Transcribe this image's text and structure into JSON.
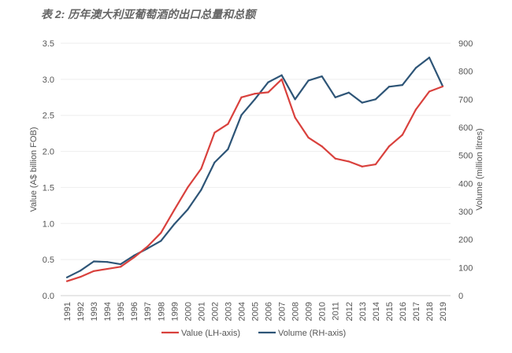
{
  "title": "表 2: 历年澳大利亚葡萄酒的出口总量和总额",
  "chart_data": {
    "type": "line",
    "title": "表 2: 历年澳大利亚葡萄酒的出口总量和总额",
    "x": [
      1991,
      1992,
      1993,
      1994,
      1995,
      1996,
      1997,
      1998,
      1999,
      2000,
      2001,
      2002,
      2003,
      2004,
      2005,
      2006,
      2007,
      2008,
      2009,
      2010,
      2011,
      2012,
      2013,
      2014,
      2015,
      2016,
      2017,
      2018,
      2019
    ],
    "ylabel": "Value (A$ billion FOB)",
    "ylabel_right": "Volume (million litres)",
    "ylim": [
      0,
      3.5
    ],
    "ylim_right": [
      0,
      900
    ],
    "yticks": [
      "0.0",
      "0.5",
      "1.0",
      "1.5",
      "2.0",
      "2.5",
      "3.0",
      "3.5"
    ],
    "yticks_right": [
      "0",
      "100",
      "200",
      "300",
      "400",
      "500",
      "600",
      "700",
      "800",
      "900"
    ],
    "grid": true,
    "legend_position": "bottom",
    "series": [
      {
        "name": "Value (LH-axis)",
        "axis": "left",
        "color": "#d9413d",
        "values": [
          0.2,
          0.26,
          0.34,
          0.37,
          0.4,
          0.53,
          0.68,
          0.87,
          1.19,
          1.5,
          1.76,
          2.26,
          2.38,
          2.75,
          2.8,
          2.82,
          3.0,
          2.47,
          2.19,
          2.07,
          1.9,
          1.86,
          1.79,
          1.82,
          2.07,
          2.23,
          2.58,
          2.83,
          2.9
        ]
      },
      {
        "name": "Volume (RH-axis)",
        "axis": "right",
        "color": "#2e5577",
        "values": [
          65,
          89,
          122,
          120,
          112,
          143,
          168,
          195,
          255,
          307,
          377,
          475,
          522,
          644,
          700,
          761,
          786,
          700,
          767,
          782,
          707,
          724,
          688,
          700,
          745,
          751,
          812,
          849,
          747
        ]
      }
    ]
  }
}
